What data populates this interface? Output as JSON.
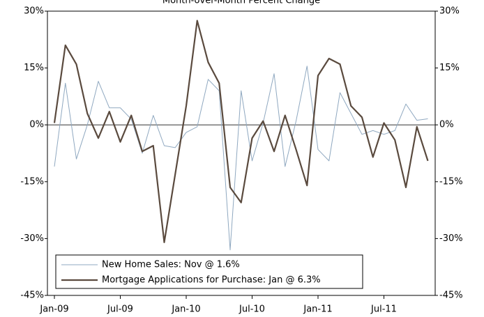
{
  "chart_data": {
    "type": "line",
    "title": "Month-over-Month Percent Change",
    "categories": [
      "Jan-09",
      null,
      null,
      null,
      null,
      null,
      "Jul-09",
      null,
      null,
      null,
      null,
      null,
      "Jan-10",
      null,
      null,
      null,
      null,
      null,
      "Jul-10",
      null,
      null,
      null,
      null,
      null,
      "Jan-11",
      null,
      null,
      null,
      null,
      null,
      "Jul-11",
      null,
      null,
      null,
      null
    ],
    "series": [
      {
        "name": "New Home Sales: Nov @ 1.6%",
        "color": "#8fa8c0",
        "width": 1,
        "values": [
          -11,
          11,
          -9,
          0,
          11.5,
          4.5,
          4.5,
          1.5,
          -7.5,
          2.5,
          -5.5,
          -6,
          -2,
          -0.5,
          12,
          9,
          -33,
          9,
          -9.5,
          0.5,
          13.5,
          -11,
          1,
          15.5,
          -6.5,
          -9.5,
          8.5,
          3,
          -2.5,
          -1.5,
          -2.5,
          -1.5,
          5.5,
          1.2,
          1.6
        ]
      },
      {
        "name": "Mortgage Applications for Purchase: Jan @ 6.3%",
        "color": "#5a4a3e",
        "width": 2.2,
        "values": [
          0.5,
          21,
          16,
          3,
          -3.5,
          3.5,
          -4.5,
          2.5,
          -7,
          -5.5,
          -31,
          -13,
          5,
          27.5,
          16.5,
          11,
          -16.5,
          -20.5,
          -3.5,
          1,
          -7,
          2.5,
          -6.5,
          -16,
          13,
          17.5,
          16,
          5,
          2,
          -8.5,
          0.5,
          -4,
          -16.5,
          -0.5,
          -9.5
        ]
      }
    ],
    "ylim": [
      -45,
      30
    ],
    "yticks": [
      {
        "value": -45,
        "label": "-45%"
      },
      {
        "value": -30,
        "label": "-30%"
      },
      {
        "value": -15,
        "label": "-15%"
      },
      {
        "value": 0,
        "label": "0%"
      },
      {
        "value": 15,
        "label": "15%"
      },
      {
        "value": 30,
        "label": "30%"
      }
    ],
    "y2lim": [
      -45,
      30
    ],
    "y2ticks": [
      {
        "value": -45,
        "label": "-45%"
      },
      {
        "value": -30,
        "label": "-30%"
      },
      {
        "value": -15,
        "label": "-15%"
      },
      {
        "value": 0,
        "label": "0%"
      },
      {
        "value": 15,
        "label": "15%"
      },
      {
        "value": 30,
        "label": "30%"
      }
    ]
  }
}
